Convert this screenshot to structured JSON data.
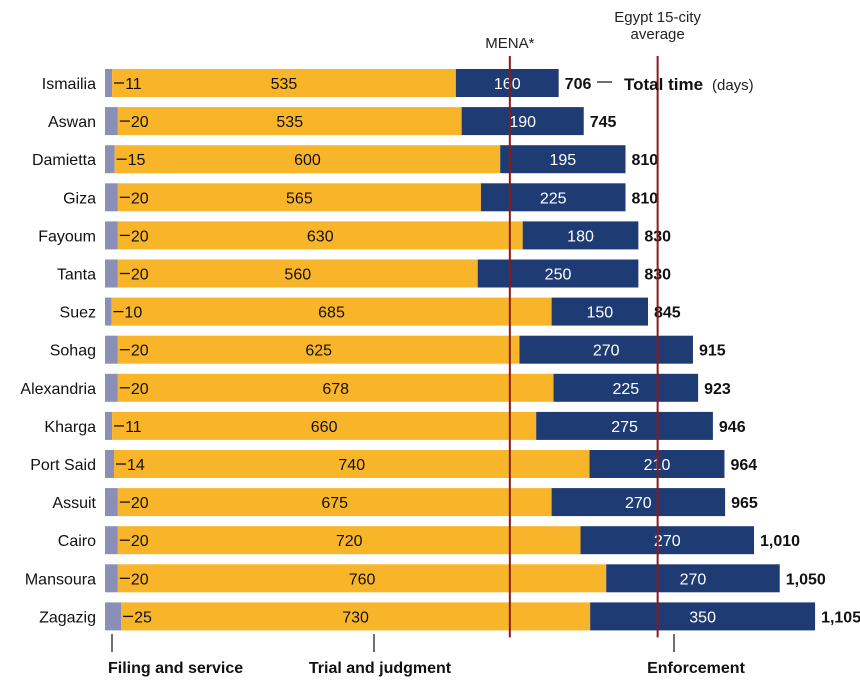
{
  "colors": {
    "filing": "#8a8fb8",
    "trial": "#f9b52a",
    "enforcement": "#1f3b73",
    "reference_line": "#8b1a1a",
    "text": "#111111"
  },
  "chart_data": {
    "type": "bar",
    "orientation": "horizontal",
    "stacked": true,
    "unit": "(days)",
    "categories": [
      "Ismailia",
      "Aswan",
      "Damietta",
      "Giza",
      "Fayoum",
      "Tanta",
      "Suez",
      "Sohag",
      "Alexandria",
      "Kharga",
      "Port Said",
      "Assuit",
      "Cairo",
      "Mansoura",
      "Zagazig"
    ],
    "series": [
      {
        "name": "Filing and service",
        "values": [
          11,
          20,
          15,
          20,
          20,
          20,
          10,
          20,
          20,
          11,
          14,
          20,
          20,
          20,
          25
        ]
      },
      {
        "name": "Trial and judgment",
        "values": [
          535,
          535,
          600,
          565,
          630,
          560,
          685,
          625,
          678,
          660,
          740,
          675,
          720,
          760,
          730
        ]
      },
      {
        "name": "Enforcement",
        "values": [
          160,
          190,
          195,
          225,
          180,
          250,
          150,
          270,
          225,
          275,
          210,
          270,
          270,
          270,
          350
        ]
      }
    ],
    "totals": [
      "706",
      "745",
      "810",
      "810",
      "830",
      "830",
      "845",
      "915",
      "923",
      "946",
      "964",
      "965",
      "1,010",
      "1,050",
      "1,105"
    ],
    "total_label": "Total time",
    "reference_lines": [
      {
        "label": "MENA*",
        "value": 630
      },
      {
        "label": "Egypt 15-city average",
        "label_lines": [
          "Egypt 15-city",
          "average"
        ],
        "value": 860
      }
    ],
    "xlim": [
      0,
      1105
    ],
    "grid": false,
    "legend_placement": "bottom"
  }
}
